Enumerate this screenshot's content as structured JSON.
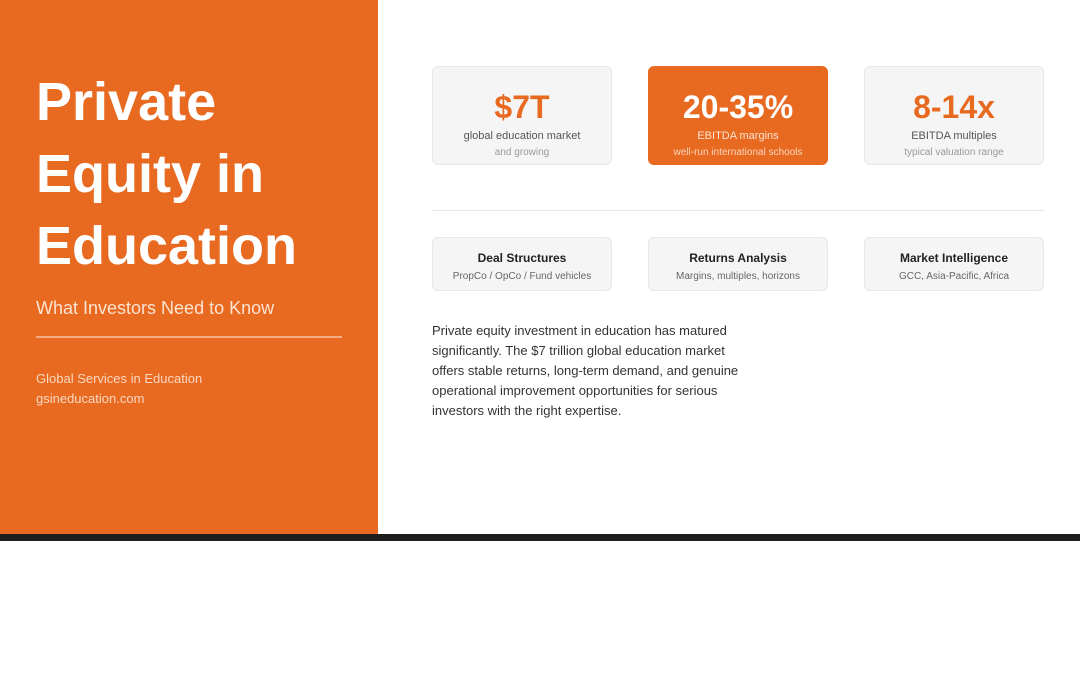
{
  "left": {
    "title": "Private Equity in Education",
    "subtitle": "What Investors Need to Know",
    "org": "Global Services in Education",
    "website": "gsineducation.com"
  },
  "stats": [
    {
      "value": "$7T",
      "label": "global education market",
      "sub": "and growing"
    },
    {
      "value": "20-35%",
      "label": "EBITDA margins",
      "sub": "well-run international schools"
    },
    {
      "value": "8-14x",
      "label": "EBITDA multiples",
      "sub": "typical valuation range"
    }
  ],
  "features": [
    {
      "title": "Deal Structures",
      "desc": "PropCo / OpCo / Fund vehicles"
    },
    {
      "title": "Returns Analysis",
      "desc": "Margins, multiples, horizons"
    },
    {
      "title": "Market Intelligence",
      "desc": "GCC, Asia-Pacific, Africa"
    }
  ],
  "body": "Private equity investment in education has matured significantly. The $7 trillion global education market offers stable returns, long-term demand, and genuine operational improvement opportunities for serious investors with the right expertise.",
  "colors": {
    "accent": "#E86A20"
  }
}
